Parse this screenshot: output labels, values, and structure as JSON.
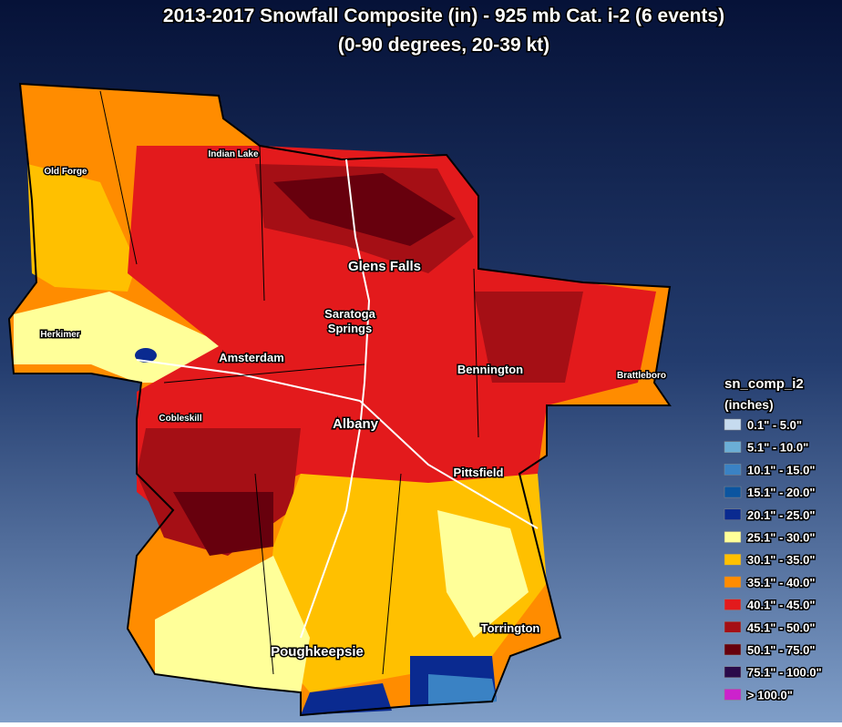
{
  "title": [
    "2013-2017 Snowfall Composite (in) - 925 mb Cat. i-2 (6 events)",
    "(0-90 degrees, 20-39 kt)"
  ],
  "places": [
    {
      "lines": [
        "Old Forge"
      ]
    },
    {
      "lines": [
        "Indian Lake"
      ]
    },
    {
      "lines": [
        "Herkimer"
      ]
    },
    {
      "lines": [
        "Amsterdam"
      ]
    },
    {
      "lines": [
        "Cobleskill"
      ]
    },
    {
      "lines": [
        "Glens Falls"
      ]
    },
    {
      "lines": [
        "Saratoga",
        "Springs"
      ]
    },
    {
      "lines": [
        "Albany"
      ]
    },
    {
      "lines": [
        "Bennington"
      ]
    },
    {
      "lines": [
        "Brattleboro"
      ]
    },
    {
      "lines": [
        "Pittsfield"
      ]
    },
    {
      "lines": [
        "Torrington"
      ]
    },
    {
      "lines": [
        "Poughkeepsie"
      ]
    }
  ],
  "legend": {
    "title": "sn_comp_i2",
    "subtitle": "(inches)",
    "items": [
      {
        "label": "0.1\" - 5.0\"",
        "color": "#c6dbef"
      },
      {
        "label": "5.1\" - 10.0\"",
        "color": "#6baed6"
      },
      {
        "label": "10.1\" - 15.0\"",
        "color": "#3a82c4"
      },
      {
        "label": "15.1\" - 20.0\"",
        "color": "#0b55a0"
      },
      {
        "label": "20.1\" - 25.0\"",
        "color": "#0a2a90"
      },
      {
        "label": "25.1\" - 30.0\"",
        "color": "#ffff99"
      },
      {
        "label": "30.1\" - 35.0\"",
        "color": "#ffc000"
      },
      {
        "label": "35.1\" - 40.0\"",
        "color": "#ff8c00"
      },
      {
        "label": "40.1\" - 45.0\"",
        "color": "#e31a1c"
      },
      {
        "label": "45.1\" - 50.0\"",
        "color": "#a50f15"
      },
      {
        "label": "50.1\" - 75.0\"",
        "color": "#67000d"
      },
      {
        "label": "75.1\" - 100.0\"",
        "color": "#2a0a4a"
      },
      {
        "label": "> 100.0\"",
        "color": "#cc22cc"
      }
    ]
  }
}
